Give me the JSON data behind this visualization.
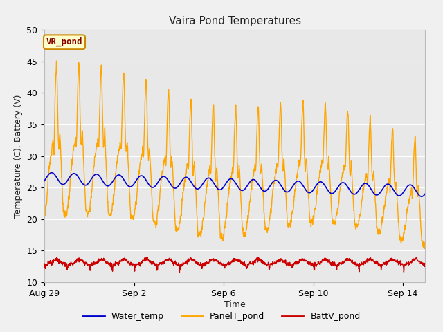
{
  "title": "Vaira Pond Temperatures",
  "xlabel": "Time",
  "ylabel": "Temperature (C), Battery (V)",
  "ylim": [
    10,
    50
  ],
  "yticks": [
    10,
    15,
    20,
    25,
    30,
    35,
    40,
    45,
    50
  ],
  "fig_bg_color": "#f0f0f0",
  "plot_bg_color": "#e8e8e8",
  "line_colors": {
    "water": "#0000cc",
    "panel": "#ffa500",
    "batt": "#cc0000"
  },
  "legend_labels": [
    "Water_temp",
    "PanelT_pond",
    "BattV_pond"
  ],
  "annotation_text": "VR_pond",
  "annotation_bg": "#ffffcc",
  "annotation_border": "#cc8800",
  "xtick_dates": [
    "Aug 29",
    "Sep 2",
    "Sep 6",
    "Sep 10",
    "Sep 14"
  ],
  "xtick_positions_days": [
    0,
    4,
    8,
    12,
    16
  ],
  "total_days": 17,
  "title_fontsize": 11,
  "axis_fontsize": 9,
  "tick_fontsize": 9,
  "legend_fontsize": 9
}
